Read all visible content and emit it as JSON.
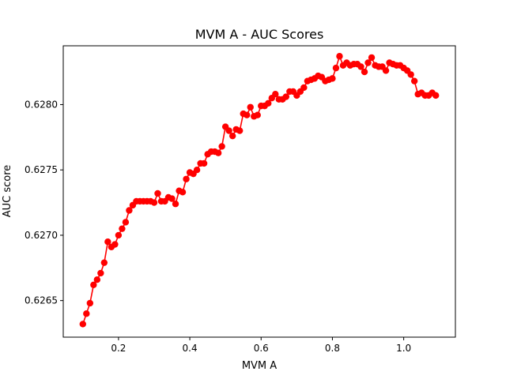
{
  "chart_data": {
    "type": "line",
    "title": "MVM A  -  AUC Scores",
    "xlabel": "MVM A",
    "ylabel": "AUC score",
    "xlim": [
      0.045,
      1.145
    ],
    "ylim": [
      0.62622,
      0.62845
    ],
    "grid": false,
    "x_ticks": [
      {
        "value": 0.2,
        "label": "0.2"
      },
      {
        "value": 0.4,
        "label": "0.4"
      },
      {
        "value": 0.6,
        "label": "0.6"
      },
      {
        "value": 0.8,
        "label": "0.8"
      },
      {
        "value": 1.0,
        "label": "1.0"
      }
    ],
    "y_ticks": [
      {
        "value": 0.6265,
        "label": "0.6265"
      },
      {
        "value": 0.627,
        "label": "0.6270"
      },
      {
        "value": 0.6275,
        "label": "0.6275"
      },
      {
        "value": 0.628,
        "label": "0.6280"
      }
    ],
    "series": [
      {
        "color": "#ff0000",
        "marker": "circle",
        "x": [
          0.1,
          0.11,
          0.12,
          0.13,
          0.14,
          0.15,
          0.16,
          0.17,
          0.18,
          0.19,
          0.2,
          0.21,
          0.22,
          0.23,
          0.24,
          0.25,
          0.26,
          0.27,
          0.28,
          0.29,
          0.3,
          0.31,
          0.32,
          0.33,
          0.34,
          0.35,
          0.36,
          0.37,
          0.38,
          0.39,
          0.4,
          0.41,
          0.42,
          0.43,
          0.44,
          0.45,
          0.46,
          0.47,
          0.48,
          0.49,
          0.5,
          0.51,
          0.52,
          0.53,
          0.54,
          0.55,
          0.56,
          0.57,
          0.58,
          0.59,
          0.6,
          0.61,
          0.62,
          0.63,
          0.64,
          0.65,
          0.66,
          0.67,
          0.68,
          0.69,
          0.7,
          0.71,
          0.72,
          0.73,
          0.74,
          0.75,
          0.76,
          0.77,
          0.78,
          0.79,
          0.8,
          0.81,
          0.82,
          0.83,
          0.84,
          0.85,
          0.86,
          0.87,
          0.88,
          0.89,
          0.9,
          0.91,
          0.92,
          0.93,
          0.94,
          0.95,
          0.96,
          0.97,
          0.98,
          0.99,
          1.0,
          1.01,
          1.02,
          1.03,
          1.04,
          1.05,
          1.06,
          1.07,
          1.08,
          1.09
        ],
        "y": [
          0.62632,
          0.6264,
          0.62648,
          0.62662,
          0.62666,
          0.62671,
          0.62679,
          0.62695,
          0.62691,
          0.62693,
          0.627,
          0.62705,
          0.6271,
          0.62719,
          0.62723,
          0.62726,
          0.62726,
          0.62726,
          0.62726,
          0.62726,
          0.62725,
          0.62732,
          0.62726,
          0.62726,
          0.62729,
          0.62728,
          0.62724,
          0.62734,
          0.62733,
          0.62743,
          0.62748,
          0.62747,
          0.6275,
          0.62755,
          0.62755,
          0.62762,
          0.62764,
          0.62764,
          0.62763,
          0.62768,
          0.62783,
          0.6278,
          0.62776,
          0.62781,
          0.6278,
          0.62793,
          0.62792,
          0.62798,
          0.62791,
          0.62792,
          0.62799,
          0.62799,
          0.62801,
          0.62805,
          0.62808,
          0.62804,
          0.62804,
          0.62806,
          0.6281,
          0.6281,
          0.62807,
          0.6281,
          0.62813,
          0.62818,
          0.62819,
          0.6282,
          0.62822,
          0.62821,
          0.62818,
          0.62819,
          0.6282,
          0.62828,
          0.62837,
          0.6283,
          0.62832,
          0.6283,
          0.62831,
          0.62831,
          0.62829,
          0.62825,
          0.62832,
          0.62836,
          0.6283,
          0.62829,
          0.62829,
          0.62826,
          0.62832,
          0.62831,
          0.6283,
          0.6283,
          0.62828,
          0.62826,
          0.62823,
          0.62818,
          0.62808,
          0.62809,
          0.62807,
          0.62807,
          0.62809,
          0.62807
        ]
      }
    ]
  }
}
